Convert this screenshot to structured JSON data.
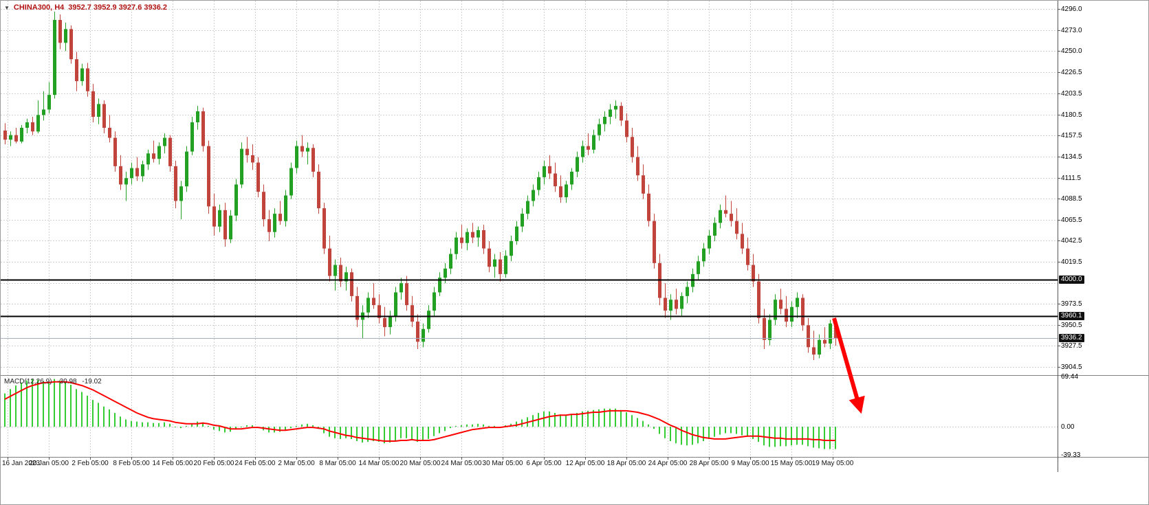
{
  "header": {
    "collapse_icon": "▼",
    "symbol_timeframe": "CHINA300, H4",
    "ohlc_text": "3952.7 3952.9 3927.6 3936.2"
  },
  "colors": {
    "background": "#ffffff",
    "grid": "#d0d0d0",
    "bull": "#21a021",
    "bear": "#c0443c",
    "macd_histogram": "#33cc33",
    "macd_signal": "#ff0000",
    "level_line": "#000000",
    "bid_line": "#a8aec0",
    "axis_text": "#000000",
    "title_text": "#b01212",
    "annotation_arrow": "#ff0000",
    "label_box_bg": "#101010",
    "label_box_text": "#ffffff",
    "border": "#808080"
  },
  "chart_data": {
    "type": "candlestick",
    "symbol": "CHINA300",
    "timeframe": "H4",
    "last_bar": {
      "open": 3952.7,
      "high": 3952.9,
      "low": 3927.6,
      "close": 3936.2
    },
    "price_axis": {
      "max": 4296.0,
      "min": 3904.5,
      "labels": [
        "4296.0",
        "4273.0",
        "4250.0",
        "4226.5",
        "4203.5",
        "4180.5",
        "4157.5",
        "4134.5",
        "4111.5",
        "4088.5",
        "4065.5",
        "4042.5",
        "4019.5",
        "3973.5",
        "3950.5",
        "3927.5",
        "3904.5"
      ],
      "grid_values": [
        4296.0,
        4273.0,
        4250.0,
        4226.5,
        4203.5,
        4180.5,
        4157.5,
        4134.5,
        4111.5,
        4088.5,
        4065.5,
        4042.5,
        4019.5,
        3996.5,
        3973.5,
        3950.5,
        3927.5,
        3904.5
      ]
    },
    "time_axis": {
      "labels": [
        "16 Jan 2023",
        "20 Jan 05:00",
        "2 Feb 05:00",
        "8 Feb 05:00",
        "14 Feb 05:00",
        "20 Feb 05:00",
        "24 Feb 05:00",
        "2 Mar 05:00",
        "8 Mar 05:00",
        "14 Mar 05:00",
        "20 Mar 05:00",
        "24 Mar 05:00",
        "30 Mar 05:00",
        "6 Apr 05:00",
        "12 Apr 05:00",
        "18 Apr 05:00",
        "24 Apr 05:00",
        "28 Apr 05:00",
        "9 May 05:00",
        "15 May 05:00",
        "19 May 05:00"
      ]
    },
    "levels": [
      {
        "label": "4000.0",
        "value": 4000.0
      },
      {
        "label": "3960.1",
        "value": 3960.1
      }
    ],
    "bid": {
      "label": "3936.2",
      "value": 3936.2
    },
    "candles": [
      [
        4163,
        4171,
        4148,
        4153
      ],
      [
        4153,
        4162,
        4146,
        4158
      ],
      [
        4158,
        4166,
        4149,
        4151
      ],
      [
        4151,
        4169,
        4149,
        4166
      ],
      [
        4166,
        4176,
        4160,
        4172
      ],
      [
        4172,
        4178,
        4158,
        4162
      ],
      [
        4162,
        4196,
        4160,
        4180
      ],
      [
        4180,
        4206,
        4174,
        4186
      ],
      [
        4186,
        4216,
        4182,
        4202
      ],
      [
        4202,
        4293,
        4198,
        4284
      ],
      [
        4284,
        4290,
        4252,
        4259
      ],
      [
        4259,
        4281,
        4250,
        4274
      ],
      [
        4274,
        4278,
        4236,
        4241
      ],
      [
        4241,
        4249,
        4206,
        4217
      ],
      [
        4217,
        4236,
        4212,
        4231
      ],
      [
        4231,
        4237,
        4200,
        4206
      ],
      [
        4206,
        4214,
        4172,
        4178
      ],
      [
        4178,
        4198,
        4170,
        4192
      ],
      [
        4192,
        4196,
        4160,
        4166
      ],
      [
        4166,
        4180,
        4150,
        4155
      ],
      [
        4155,
        4162,
        4118,
        4124
      ],
      [
        4124,
        4136,
        4098,
        4104
      ],
      [
        4104,
        4118,
        4086,
        4111
      ],
      [
        4111,
        4128,
        4104,
        4122
      ],
      [
        4122,
        4134,
        4108,
        4113
      ],
      [
        4113,
        4130,
        4107,
        4126
      ],
      [
        4126,
        4142,
        4120,
        4138
      ],
      [
        4138,
        4152,
        4128,
        4132
      ],
      [
        4132,
        4150,
        4126,
        4146
      ],
      [
        4146,
        4160,
        4138,
        4155
      ],
      [
        4155,
        4158,
        4118,
        4124
      ],
      [
        4124,
        4130,
        4078,
        4086
      ],
      [
        4086,
        4108,
        4066,
        4102
      ],
      [
        4102,
        4146,
        4096,
        4140
      ],
      [
        4140,
        4178,
        4136,
        4172
      ],
      [
        4172,
        4190,
        4164,
        4184
      ],
      [
        4184,
        4188,
        4140,
        4146
      ],
      [
        4146,
        4152,
        4072,
        4080
      ],
      [
        4080,
        4094,
        4048,
        4058
      ],
      [
        4058,
        4082,
        4052,
        4076
      ],
      [
        4076,
        4084,
        4036,
        4044
      ],
      [
        4044,
        4076,
        4040,
        4070
      ],
      [
        4070,
        4110,
        4064,
        4104
      ],
      [
        4104,
        4150,
        4100,
        4143
      ],
      [
        4143,
        4156,
        4128,
        4136
      ],
      [
        4136,
        4148,
        4120,
        4128
      ],
      [
        4128,
        4134,
        4090,
        4096
      ],
      [
        4096,
        4104,
        4058,
        4066
      ],
      [
        4066,
        4076,
        4042,
        4052
      ],
      [
        4052,
        4078,
        4046,
        4072
      ],
      [
        4072,
        4086,
        4060,
        4064
      ],
      [
        4064,
        4098,
        4058,
        4092
      ],
      [
        4092,
        4128,
        4088,
        4122
      ],
      [
        4122,
        4152,
        4116,
        4146
      ],
      [
        4146,
        4158,
        4134,
        4140
      ],
      [
        4140,
        4150,
        4126,
        4144
      ],
      [
        4144,
        4148,
        4112,
        4118
      ],
      [
        4118,
        4126,
        4072,
        4078
      ],
      [
        4078,
        4084,
        4028,
        4034
      ],
      [
        4034,
        4048,
        3998,
        4004
      ],
      [
        4004,
        4022,
        3988,
        4016
      ],
      [
        4016,
        4024,
        3992,
        3998
      ],
      [
        3998,
        4014,
        3988,
        4008
      ],
      [
        4008,
        4012,
        3976,
        3982
      ],
      [
        3982,
        3992,
        3948,
        3956
      ],
      [
        3956,
        3972,
        3936,
        3964
      ],
      [
        3964,
        3986,
        3958,
        3980
      ],
      [
        3980,
        3996,
        3968,
        3972
      ],
      [
        3972,
        3984,
        3952,
        3958
      ],
      [
        3958,
        3970,
        3938,
        3948
      ],
      [
        3948,
        3966,
        3940,
        3960
      ],
      [
        3960,
        3992,
        3954,
        3986
      ],
      [
        3986,
        4002,
        3978,
        3996
      ],
      [
        3996,
        4004,
        3966,
        3972
      ],
      [
        3972,
        3982,
        3948,
        3954
      ],
      [
        3954,
        3962,
        3924,
        3932
      ],
      [
        3932,
        3952,
        3926,
        3946
      ],
      [
        3946,
        3972,
        3942,
        3966
      ],
      [
        3966,
        3992,
        3960,
        3986
      ],
      [
        3986,
        4008,
        3982,
        4002
      ],
      [
        4002,
        4018,
        3996,
        4012
      ],
      [
        4012,
        4034,
        4006,
        4028
      ],
      [
        4028,
        4052,
        4022,
        4046
      ],
      [
        4046,
        4060,
        4034,
        4040
      ],
      [
        4040,
        4056,
        4032,
        4052
      ],
      [
        4052,
        4062,
        4040,
        4046
      ],
      [
        4046,
        4058,
        4036,
        4054
      ],
      [
        4054,
        4060,
        4028,
        4034
      ],
      [
        4034,
        4042,
        4008,
        4014
      ],
      [
        4014,
        4028,
        4002,
        4022
      ],
      [
        4022,
        4030,
        3998,
        4006
      ],
      [
        4006,
        4032,
        4002,
        4026
      ],
      [
        4026,
        4048,
        4020,
        4042
      ],
      [
        4042,
        4064,
        4038,
        4058
      ],
      [
        4058,
        4078,
        4052,
        4072
      ],
      [
        4072,
        4092,
        4066,
        4086
      ],
      [
        4086,
        4104,
        4080,
        4098
      ],
      [
        4098,
        4118,
        4092,
        4112
      ],
      [
        4112,
        4130,
        4104,
        4124
      ],
      [
        4124,
        4136,
        4110,
        4116
      ],
      [
        4116,
        4128,
        4096,
        4102
      ],
      [
        4102,
        4114,
        4084,
        4090
      ],
      [
        4090,
        4108,
        4084,
        4104
      ],
      [
        4104,
        4122,
        4098,
        4118
      ],
      [
        4118,
        4140,
        4112,
        4134
      ],
      [
        4134,
        4152,
        4128,
        4146
      ],
      [
        4146,
        4160,
        4136,
        4142
      ],
      [
        4142,
        4164,
        4138,
        4158
      ],
      [
        4158,
        4176,
        4152,
        4170
      ],
      [
        4170,
        4184,
        4162,
        4178
      ],
      [
        4178,
        4192,
        4170,
        4186
      ],
      [
        4186,
        4196,
        4176,
        4190
      ],
      [
        4190,
        4194,
        4168,
        4174
      ],
      [
        4174,
        4182,
        4150,
        4156
      ],
      [
        4156,
        4166,
        4128,
        4134
      ],
      [
        4134,
        4146,
        4108,
        4114
      ],
      [
        4114,
        4126,
        4088,
        4094
      ],
      [
        4094,
        4104,
        4058,
        4064
      ],
      [
        4064,
        4072,
        4012,
        4018
      ],
      [
        4018,
        4028,
        3972,
        3980
      ],
      [
        3980,
        3996,
        3958,
        3966
      ],
      [
        3966,
        3984,
        3956,
        3978
      ],
      [
        3978,
        3990,
        3962,
        3968
      ],
      [
        3968,
        3986,
        3960,
        3982
      ],
      [
        3982,
        3998,
        3974,
        3992
      ],
      [
        3992,
        4012,
        3986,
        4006
      ],
      [
        4006,
        4026,
        4000,
        4020
      ],
      [
        4020,
        4040,
        4014,
        4034
      ],
      [
        4034,
        4054,
        4028,
        4048
      ],
      [
        4048,
        4068,
        4042,
        4062
      ],
      [
        4062,
        4082,
        4056,
        4076
      ],
      [
        4076,
        4092,
        4068,
        4072
      ],
      [
        4072,
        4086,
        4058,
        4064
      ],
      [
        4064,
        4078,
        4044,
        4050
      ],
      [
        4050,
        4062,
        4028,
        4034
      ],
      [
        4034,
        4046,
        4010,
        4016
      ],
      [
        4016,
        4028,
        3992,
        3998
      ],
      [
        3998,
        4006,
        3952,
        3958
      ],
      [
        3958,
        3968,
        3924,
        3934
      ],
      [
        3934,
        3962,
        3928,
        3956
      ],
      [
        3956,
        3984,
        3950,
        3978
      ],
      [
        3978,
        3990,
        3962,
        3968
      ],
      [
        3968,
        3982,
        3948,
        3954
      ],
      [
        3954,
        3976,
        3948,
        3970
      ],
      [
        3970,
        3986,
        3958,
        3980
      ],
      [
        3980,
        3984,
        3944,
        3950
      ],
      [
        3950,
        3958,
        3920,
        3926
      ],
      [
        3926,
        3944,
        3912,
        3918
      ],
      [
        3918,
        3940,
        3914,
        3934
      ],
      [
        3934,
        3948,
        3926,
        3930
      ],
      [
        3930,
        3956,
        3924,
        3952
      ],
      [
        3952.7,
        3952.9,
        3927.6,
        3936.2
      ]
    ],
    "macd": {
      "name": "MACD(12,26,9)",
      "value_main": "-30.98",
      "value_signal": "-19.02",
      "scale_top": 69.44,
      "axis_labels": [
        {
          "label": "69.44",
          "value": 69.44
        },
        {
          "label": "0.00",
          "value": 0
        },
        {
          "label": "-39.33",
          "value": -39.33
        }
      ],
      "histogram": [
        46,
        52,
        57,
        61,
        64,
        66,
        65,
        63,
        62,
        66,
        64,
        62,
        58,
        52,
        48,
        43,
        37,
        33,
        28,
        24,
        19,
        14,
        10,
        8,
        7,
        6,
        6,
        5,
        5,
        6,
        4,
        0,
        -2,
        1,
        4,
        7,
        6,
        1,
        -4,
        -6,
        -8,
        -7,
        -4,
        0,
        2,
        2,
        -1,
        -5,
        -8,
        -8,
        -7,
        -5,
        -2,
        1,
        3,
        4,
        2,
        -3,
        -9,
        -14,
        -16,
        -17,
        -16,
        -17,
        -20,
        -22,
        -21,
        -20,
        -21,
        -23,
        -22,
        -19,
        -16,
        -16,
        -18,
        -21,
        -20,
        -17,
        -13,
        -9,
        -6,
        -2,
        1,
        2,
        3,
        3,
        4,
        3,
        1,
        1,
        0,
        2,
        4,
        7,
        10,
        13,
        16,
        19,
        21,
        21,
        19,
        17,
        16,
        17,
        19,
        21,
        22,
        23,
        24,
        25,
        25,
        25,
        23,
        20,
        16,
        12,
        8,
        3,
        -3,
        -10,
        -16,
        -20,
        -23,
        -25,
        -26,
        -25,
        -23,
        -20,
        -17,
        -14,
        -11,
        -9,
        -9,
        -10,
        -12,
        -14,
        -17,
        -21,
        -26,
        -28,
        -28,
        -27,
        -27,
        -26,
        -25,
        -25,
        -27,
        -29,
        -30,
        -31,
        -31,
        -30.98
      ],
      "signal": [
        38,
        42,
        46,
        50,
        54,
        57,
        59,
        61,
        61,
        62,
        62,
        62,
        61,
        59,
        57,
        54,
        51,
        47,
        43,
        39,
        35,
        31,
        27,
        23,
        19,
        16,
        13,
        11,
        10,
        9,
        8,
        6,
        5,
        4,
        4,
        4,
        5,
        4,
        2,
        1,
        -1,
        -3,
        -3,
        -3,
        -2,
        -1,
        -1,
        -2,
        -3,
        -4,
        -5,
        -5,
        -4,
        -3,
        -2,
        -1,
        -1,
        -2,
        -3,
        -6,
        -8,
        -10,
        -12,
        -13,
        -15,
        -16,
        -17,
        -18,
        -19,
        -20,
        -20,
        -20,
        -19,
        -19,
        -18,
        -19,
        -19,
        -19,
        -18,
        -16,
        -14,
        -12,
        -10,
        -8,
        -6,
        -4,
        -3,
        -2,
        -1,
        -1,
        -1,
        0,
        1,
        2,
        4,
        6,
        8,
        10,
        12,
        14,
        15,
        16,
        16,
        17,
        17,
        18,
        19,
        20,
        20,
        21,
        22,
        22,
        22,
        22,
        21,
        20,
        18,
        16,
        13,
        10,
        6,
        2,
        -1,
        -5,
        -8,
        -11,
        -13,
        -15,
        -16,
        -17,
        -17,
        -17,
        -16,
        -15,
        -14,
        -13,
        -13,
        -13,
        -14,
        -15,
        -16,
        -16,
        -17,
        -17,
        -17,
        -17,
        -17,
        -18,
        -18,
        -19,
        -19,
        -19.02
      ]
    },
    "annotation": {
      "type": "arrow",
      "color": "#ff0000",
      "from": [
        1212,
        462
      ],
      "to": [
        1246,
        581
      ]
    }
  }
}
